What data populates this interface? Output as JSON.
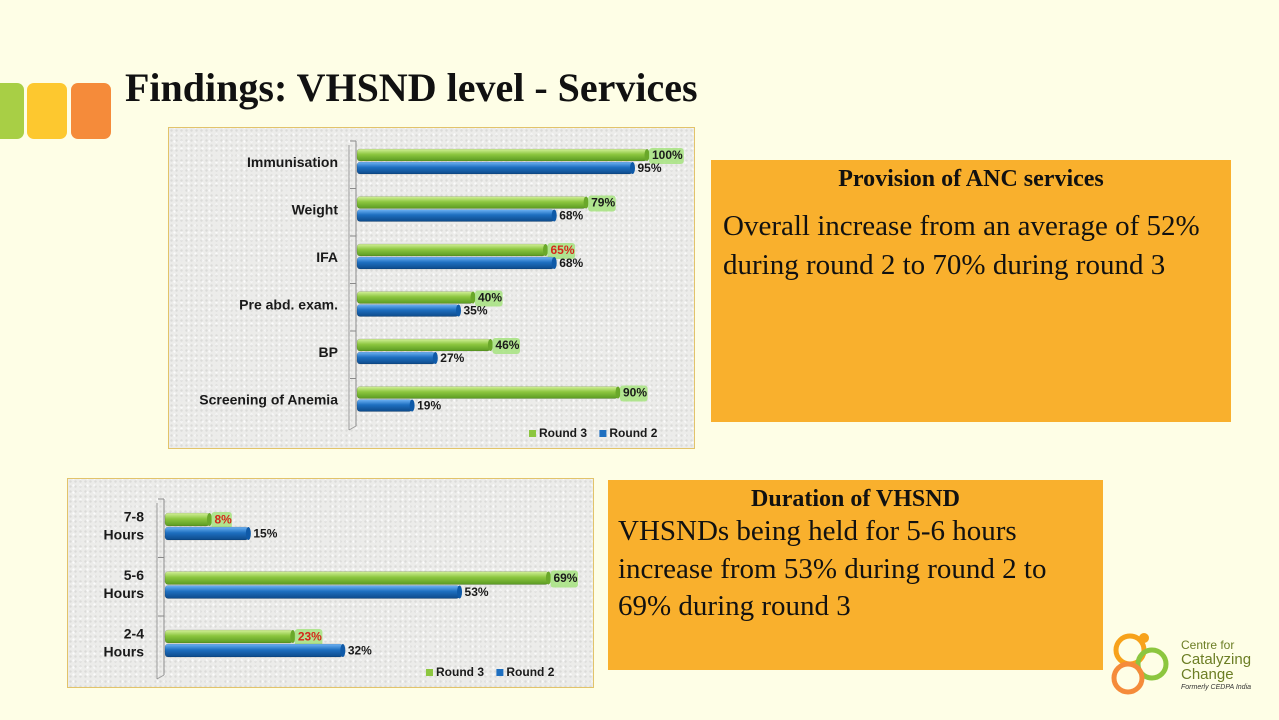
{
  "page": {
    "title": "Findings: VHSND level  - Services"
  },
  "colors": {
    "background": "#fefee6",
    "round3": "#8cc63f",
    "round2": "#1e6fc0",
    "panel": "#f9b02d",
    "deco": [
      "#a8cf45",
      "#fdc82f",
      "#f58b3a"
    ],
    "label_highlight_green": "#a6e37f",
    "label_highlight_red_text": "#d4281b"
  },
  "panels": {
    "anc": {
      "heading": "Provision of ANC services",
      "body": "Overall increase from an average of 52% during round 2 to 70% during round 3"
    },
    "duration": {
      "heading": "Duration of VHSND",
      "body": "VHSNDs being held for 5-6 hours increase from 53% during round 2 to 69% during round 3"
    }
  },
  "logo": {
    "line1": "Centre for",
    "line2": "Catalyzing",
    "line3": "Change",
    "tagline": "Formerly CEDPA India"
  },
  "chart_data": [
    {
      "type": "bar",
      "orientation": "horizontal",
      "categories": [
        "Immunisation",
        "Weight",
        "IFA",
        "Pre abd. exam.",
        "BP",
        "Screening of Anemia"
      ],
      "series": [
        {
          "name": "Round 3",
          "values": [
            100,
            79,
            65,
            40,
            46,
            90
          ],
          "labels": [
            "100%",
            "79%",
            "65%",
            "40%",
            "46%",
            "90%"
          ]
        },
        {
          "name": "Round 2",
          "values": [
            95,
            68,
            68,
            35,
            27,
            19
          ],
          "labels": [
            "95%",
            "68%",
            "68%",
            "35%",
            "27%",
            "19%"
          ]
        }
      ],
      "xlim": [
        0,
        100
      ],
      "legend": "bottom-right",
      "grid": false
    },
    {
      "type": "bar",
      "orientation": "horizontal",
      "categories": [
        "7-8 Hours",
        "5-6 Hours",
        "2-4 Hours"
      ],
      "series": [
        {
          "name": "Round 3",
          "values": [
            8,
            69,
            23
          ],
          "labels": [
            "8%",
            "69%",
            "23%"
          ]
        },
        {
          "name": "Round 2",
          "values": [
            15,
            53,
            32
          ],
          "labels": [
            "15%",
            "53%",
            "32%"
          ]
        }
      ],
      "xlim": [
        0,
        70
      ],
      "legend": "bottom-right",
      "grid": false
    }
  ]
}
